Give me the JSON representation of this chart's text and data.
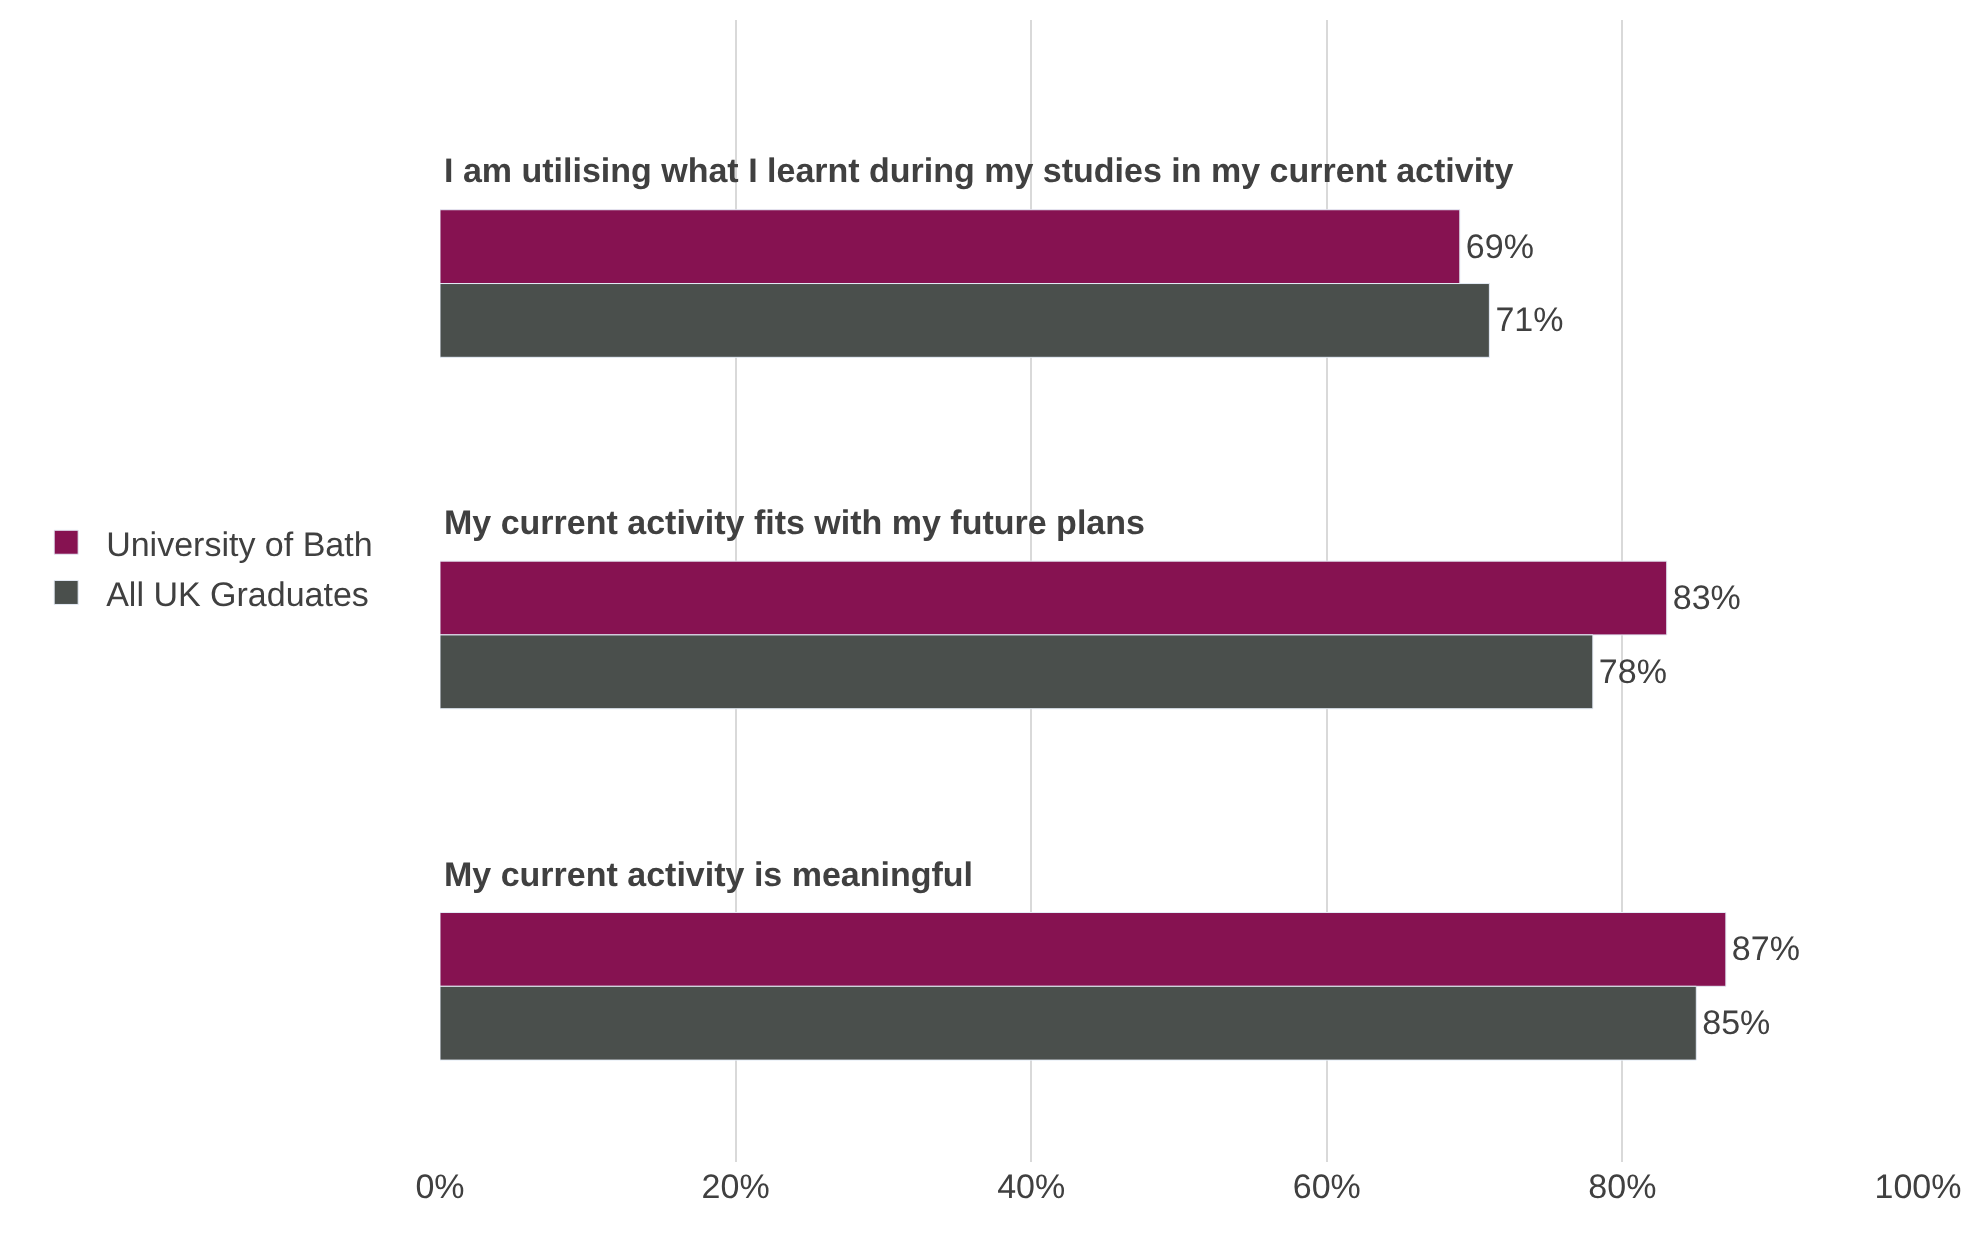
{
  "chart_data": {
    "type": "bar",
    "orientation": "horizontal",
    "categories": [
      "I am utilising what I learnt during my studies in my current activity",
      "My current activity fits with my future plans",
      "My current activity is meaningful"
    ],
    "series": [
      {
        "name": "University of Bath",
        "color": "#861251",
        "values": [
          69,
          83,
          87
        ],
        "value_labels": [
          "69%",
          "83%",
          "87%"
        ]
      },
      {
        "name": "All UK Graduates",
        "color": "#4a4f4c",
        "values": [
          71,
          78,
          85
        ],
        "value_labels": [
          "71%",
          "78%",
          "85%"
        ]
      }
    ],
    "xlim": [
      0,
      100
    ],
    "xticks": [
      {
        "value": 0,
        "label": "0%"
      },
      {
        "value": 20,
        "label": "20%"
      },
      {
        "value": 40,
        "label": "40%"
      },
      {
        "value": 60,
        "label": "60%"
      },
      {
        "value": 80,
        "label": "80%"
      },
      {
        "value": 100,
        "label": "100%"
      }
    ],
    "grid": "x",
    "legend": "left",
    "tick_labels": "x"
  }
}
